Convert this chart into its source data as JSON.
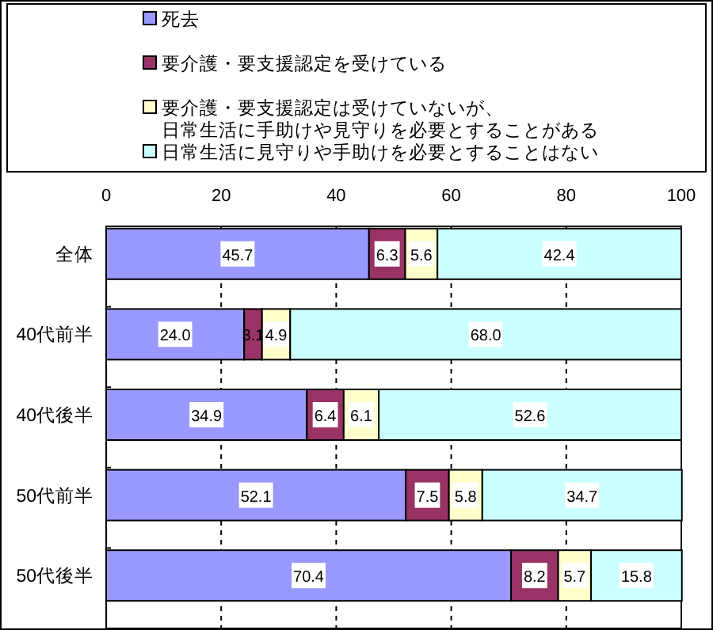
{
  "chart_data": {
    "type": "bar",
    "orientation": "horizontal",
    "stacked": true,
    "categories": [
      "全体",
      "40代前半",
      "40代後半",
      "50代前半",
      "50代後半"
    ],
    "series": [
      {
        "name": "死去",
        "color": "#9999ff",
        "values": [
          45.7,
          24.0,
          34.9,
          52.1,
          70.4
        ],
        "value_labels": [
          "45.7",
          "24.0",
          "34.9",
          "52.1",
          "70.4"
        ]
      },
      {
        "name": "要介護・要支援認定を受けている",
        "color": "#993366",
        "values": [
          6.3,
          3.1,
          6.4,
          7.5,
          8.2
        ],
        "value_labels": [
          "6.3",
          "3.1",
          "6.4",
          "7.5",
          "8.2"
        ]
      },
      {
        "name": "要介護・要支援認定は受けていないが、日常生活に手助けや見守りを必要とすることがある",
        "color": "#ffffcc",
        "values": [
          5.6,
          4.9,
          6.1,
          5.8,
          5.7
        ],
        "value_labels": [
          "5.6",
          "4.9",
          "6.1",
          "5.8",
          "5.7"
        ]
      },
      {
        "name": "日常生活に見守りや手助けを必要とすることはない",
        "color": "#ccffff",
        "values": [
          42.4,
          68.0,
          52.6,
          34.7,
          15.8
        ],
        "value_labels": [
          "42.4",
          "68.0",
          "52.6",
          "34.7",
          "15.8"
        ]
      }
    ],
    "xlim": [
      0,
      100
    ],
    "xticks": [
      0,
      20,
      40,
      60,
      80,
      100
    ],
    "grid": "x",
    "legend": "top"
  }
}
